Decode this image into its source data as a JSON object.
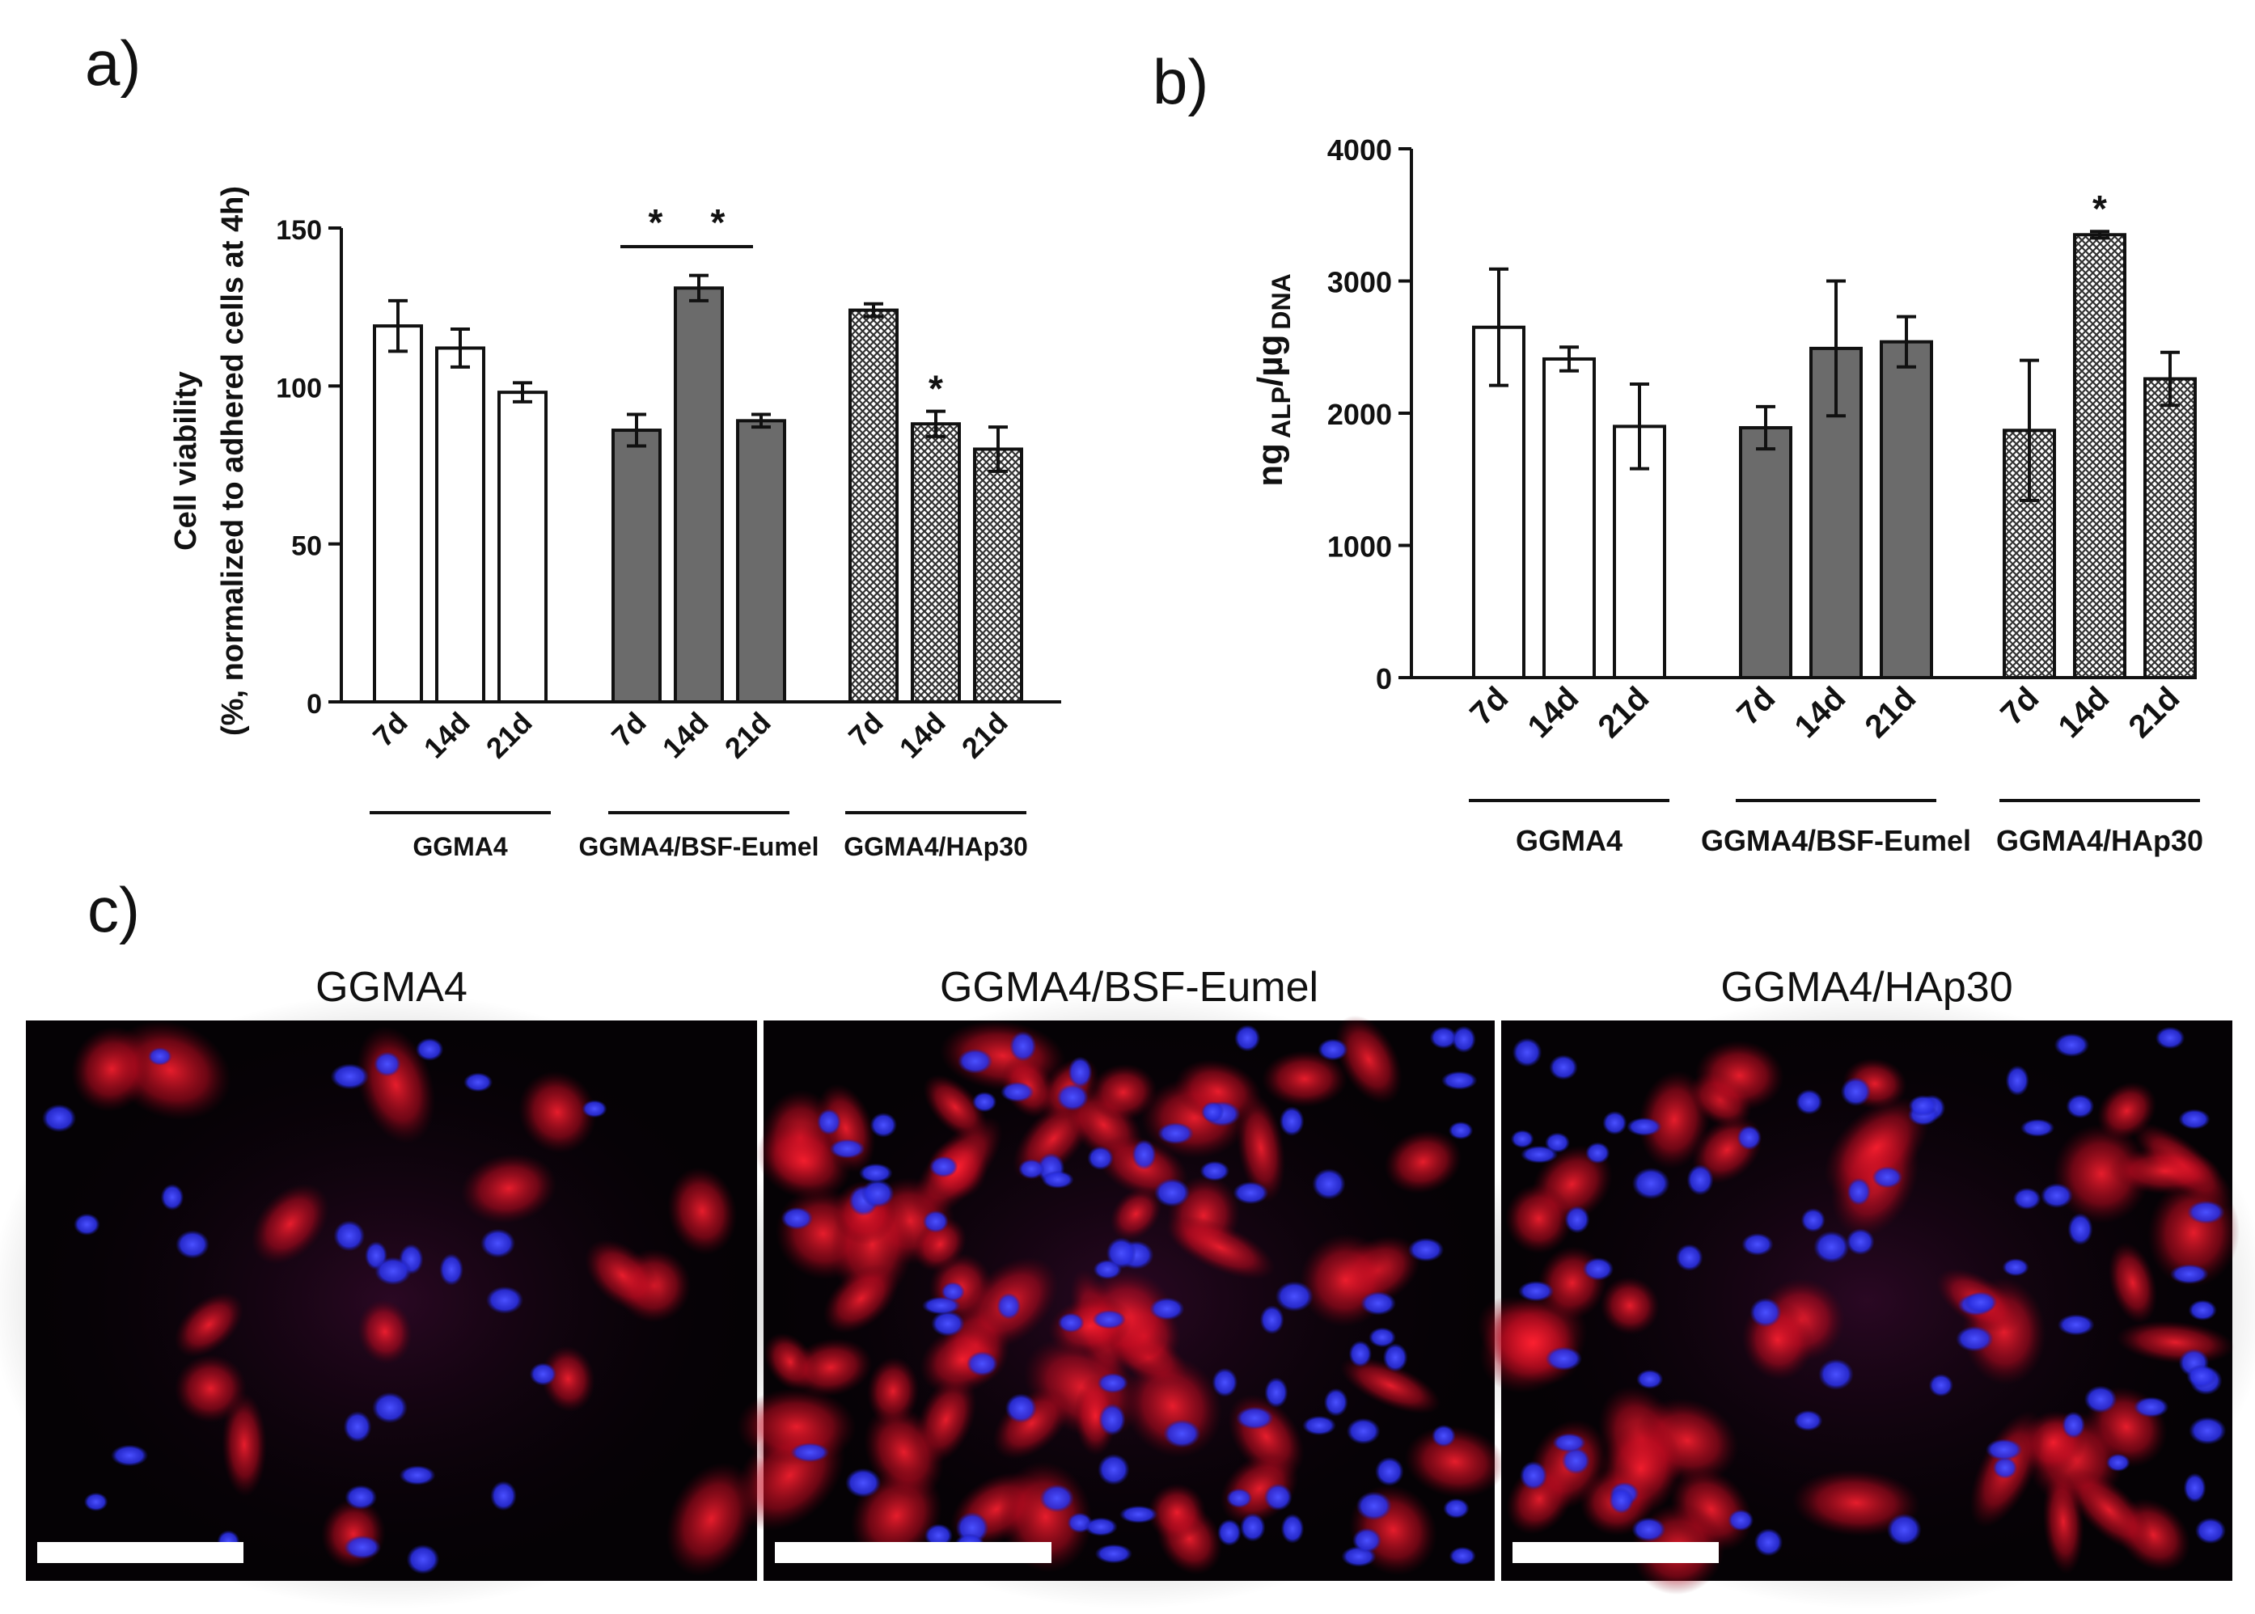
{
  "panels": {
    "a": "a)",
    "b": "b)",
    "c": "c)"
  },
  "colors": {
    "gelma_open": "#ffffff",
    "bsf_fill": "#6b6b6b",
    "hap_fill": "hatched",
    "axis": "#111111",
    "image_bg": "#050205",
    "nucleus": "#2a2ef0",
    "cytoskeleton": "#d8102a",
    "scale_bar": "#ffffff"
  },
  "chart_data": [
    {
      "type": "bar",
      "panel": "a)",
      "ylabel": "Cell viability",
      "ylabel_sub": "(%, normalized to adhered cells at 4h)",
      "ylim": [
        0,
        150
      ],
      "yticks": [
        "0",
        "50",
        "100",
        "150"
      ],
      "groups": [
        "GGMA4",
        "GGMA4/BSF-Eumel",
        "GGMA4/HAp30"
      ],
      "categories": [
        "7d",
        "14d",
        "21d"
      ],
      "series": [
        {
          "name": "GGMA4",
          "fill": "open",
          "values": [
            119,
            112,
            98
          ],
          "errors": [
            8,
            6,
            3
          ]
        },
        {
          "name": "GGMA4/BSF-Eumel",
          "fill": "solid",
          "values": [
            86,
            131,
            89
          ],
          "errors": [
            5,
            4,
            2
          ]
        },
        {
          "name": "GGMA4/HAp30",
          "fill": "hatched",
          "values": [
            124,
            88,
            80
          ],
          "errors": [
            2,
            4,
            7
          ]
        }
      ],
      "annotations": [
        {
          "text": "*",
          "type": "bracket",
          "group": 1,
          "from": 0,
          "to": 1
        },
        {
          "text": "*",
          "type": "bracket",
          "group": 1,
          "from": 1,
          "to": 2
        },
        {
          "text": "*",
          "type": "bar",
          "group": 2,
          "bar": 1
        }
      ]
    },
    {
      "type": "bar",
      "panel": "b)",
      "ylabel": "ng",
      "ylabel_sub1": "ALP",
      "ylabel_sep": "/µg",
      "ylabel_sub2": "DNA",
      "ylim": [
        0,
        4000
      ],
      "yticks": [
        "0",
        "1000",
        "2000",
        "3000",
        "4000"
      ],
      "groups": [
        "GGMA4",
        "GGMA4/BSF-Eumel",
        "GGMA4/HAp30"
      ],
      "categories": [
        "7d",
        "14d",
        "21d"
      ],
      "series": [
        {
          "name": "GGMA4",
          "fill": "open",
          "values": [
            2650,
            2410,
            1900
          ],
          "errors": [
            440,
            90,
            320
          ]
        },
        {
          "name": "GGMA4/BSF-Eumel",
          "fill": "solid",
          "values": [
            1890,
            2490,
            2540
          ],
          "errors": [
            160,
            510,
            190
          ]
        },
        {
          "name": "GGMA4/HAp30",
          "fill": "hatched",
          "values": [
            1870,
            3350,
            2260
          ],
          "errors": [
            530,
            25,
            200
          ]
        }
      ],
      "annotations": [
        {
          "text": "*",
          "type": "bar",
          "group": 2,
          "bar": 1
        }
      ]
    }
  ],
  "micrographs": [
    {
      "title": "GGMA4",
      "density": "sparse"
    },
    {
      "title": "GGMA4/BSF-Eumel",
      "density": "dense"
    },
    {
      "title": "GGMA4/HAp30",
      "density": "medium"
    }
  ]
}
